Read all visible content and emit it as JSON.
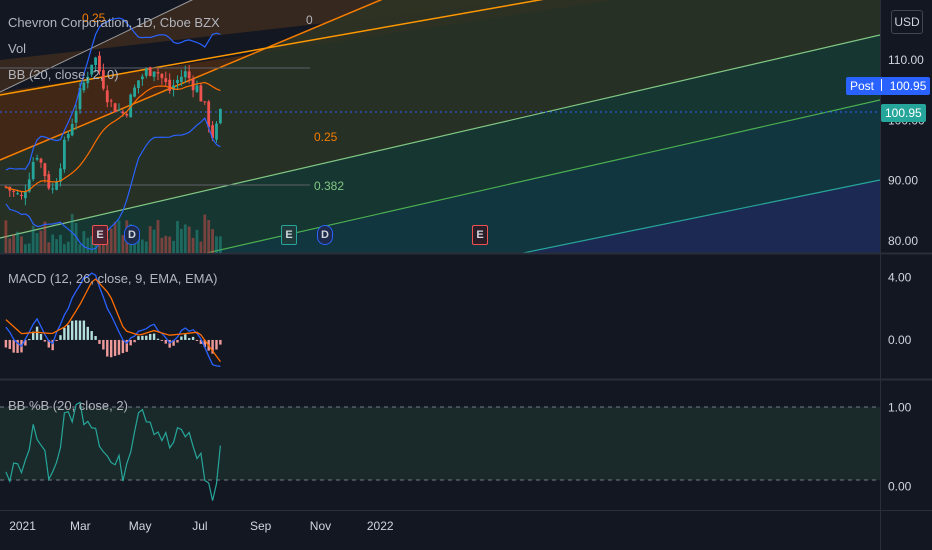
{
  "header": {
    "title": "Chevron Corporation, 1D, Cboe BZX",
    "vol_label": "Vol",
    "bb_label": "BB (20, close, 2, 0)",
    "currency": "USD"
  },
  "macd": {
    "label": "MACD (12, 26, close, 9, EMA, EMA)"
  },
  "bbpct": {
    "label": "BB %B (20, close, 2)"
  },
  "price_tags": {
    "post_label": "Post",
    "post_value": "100.95",
    "last_value": "100.95",
    "post_color": "#2962ff",
    "last_color": "#26a69a"
  },
  "fib_labels": [
    "0.25",
    "0",
    "0.25",
    "0.382"
  ],
  "event_badges": [
    "E",
    "D",
    "E",
    "D",
    "E"
  ],
  "colors": {
    "up": "#26a69a",
    "down": "#ef5350",
    "bb": "#2962ff",
    "basis": "#ff6d00",
    "bbpct": "#26a69a",
    "fib_orange": "#f57c00",
    "fib_green": "#4caf50",
    "fib_teal": "#089981"
  },
  "chart_data": [
    {
      "type": "candlestick",
      "title": "Chevron Corporation, 1D, Cboe BZX",
      "ylim": [
        78,
        120
      ],
      "y_ticks": [
        "110.00",
        "100.00",
        "90.00",
        "80.00"
      ],
      "x_ticks": [
        "2021",
        "Mar",
        "May",
        "Jul",
        "Sep",
        "Nov",
        "2022"
      ],
      "last_close": 100.95,
      "series": [
        {
          "name": "close",
          "x": [
            "2020-12-15",
            "2020-12-31",
            "2021-01-15",
            "2021-01-31",
            "2021-02-15",
            "2021-02-28",
            "2021-03-15",
            "2021-03-31",
            "2021-04-15",
            "2021-04-30",
            "2021-05-15",
            "2021-05-31",
            "2021-06-15",
            "2021-06-30",
            "2021-07-15",
            "2021-07-22"
          ],
          "values": [
            89,
            87,
            95,
            88,
            97,
            104,
            111,
            103,
            101,
            107,
            109,
            105,
            108,
            105,
            97,
            100.95
          ]
        }
      ]
    },
    {
      "type": "line",
      "title": "MACD (12, 26, close, 9, EMA, EMA)",
      "ylim": [
        -2.5,
        5.5
      ],
      "y_ticks": [
        "4.00",
        "0.00"
      ],
      "series": [
        {
          "name": "MACD",
          "values": [
            0.8,
            -0.5,
            1.4,
            -0.3,
            1.8,
            3.6,
            4.5,
            1.6,
            -0.2,
            0.6,
            1.0,
            -0.2,
            0.8,
            0.5,
            -1.8,
            -1.8
          ]
        },
        {
          "name": "Signal",
          "values": [
            1.3,
            0.4,
            0.5,
            0.4,
            0.9,
            2.2,
            4.0,
            2.9,
            0.6,
            0.3,
            0.6,
            0.3,
            0.4,
            0.5,
            -0.8,
            -1.4
          ]
        }
      ]
    },
    {
      "type": "line",
      "title": "BB %B (20, close, 2)",
      "ylim": [
        -0.3,
        1.35
      ],
      "y_ticks": [
        "1.00",
        "0.00"
      ],
      "series": [
        {
          "name": "%B",
          "values": [
            0.3,
            0.05,
            0.8,
            0.1,
            0.9,
            1.0,
            0.85,
            0.3,
            0.2,
            1.1,
            0.8,
            0.5,
            0.7,
            0.4,
            -0.2,
            0.4
          ]
        }
      ]
    }
  ]
}
